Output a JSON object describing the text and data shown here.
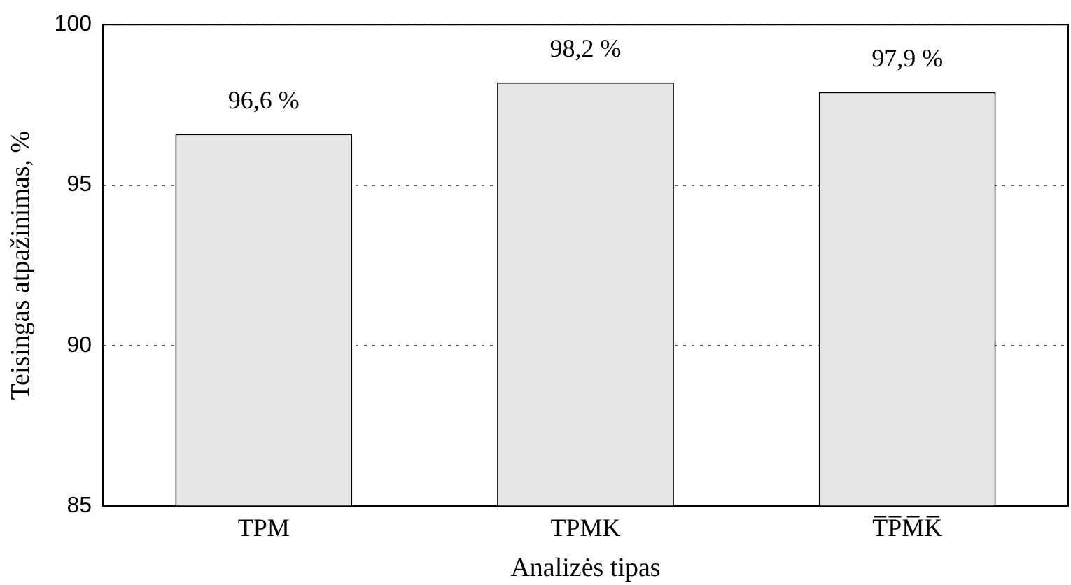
{
  "chart_data": {
    "type": "bar",
    "xlabel": "Analizės tipas",
    "ylabel": "Teisingas atpažinimas, %",
    "categories": [
      "TPM",
      "TPMK",
      "T̅P̅M̅K̅"
    ],
    "values": [
      96.6,
      98.2,
      97.9
    ],
    "value_labels": [
      "96,6 %",
      "98,2 %",
      "97,9 %"
    ],
    "color": "#e6e6e6",
    "ylim": [
      85,
      100
    ],
    "yticks": [
      85,
      90,
      95,
      100
    ],
    "grid": "y",
    "legend": false
  }
}
